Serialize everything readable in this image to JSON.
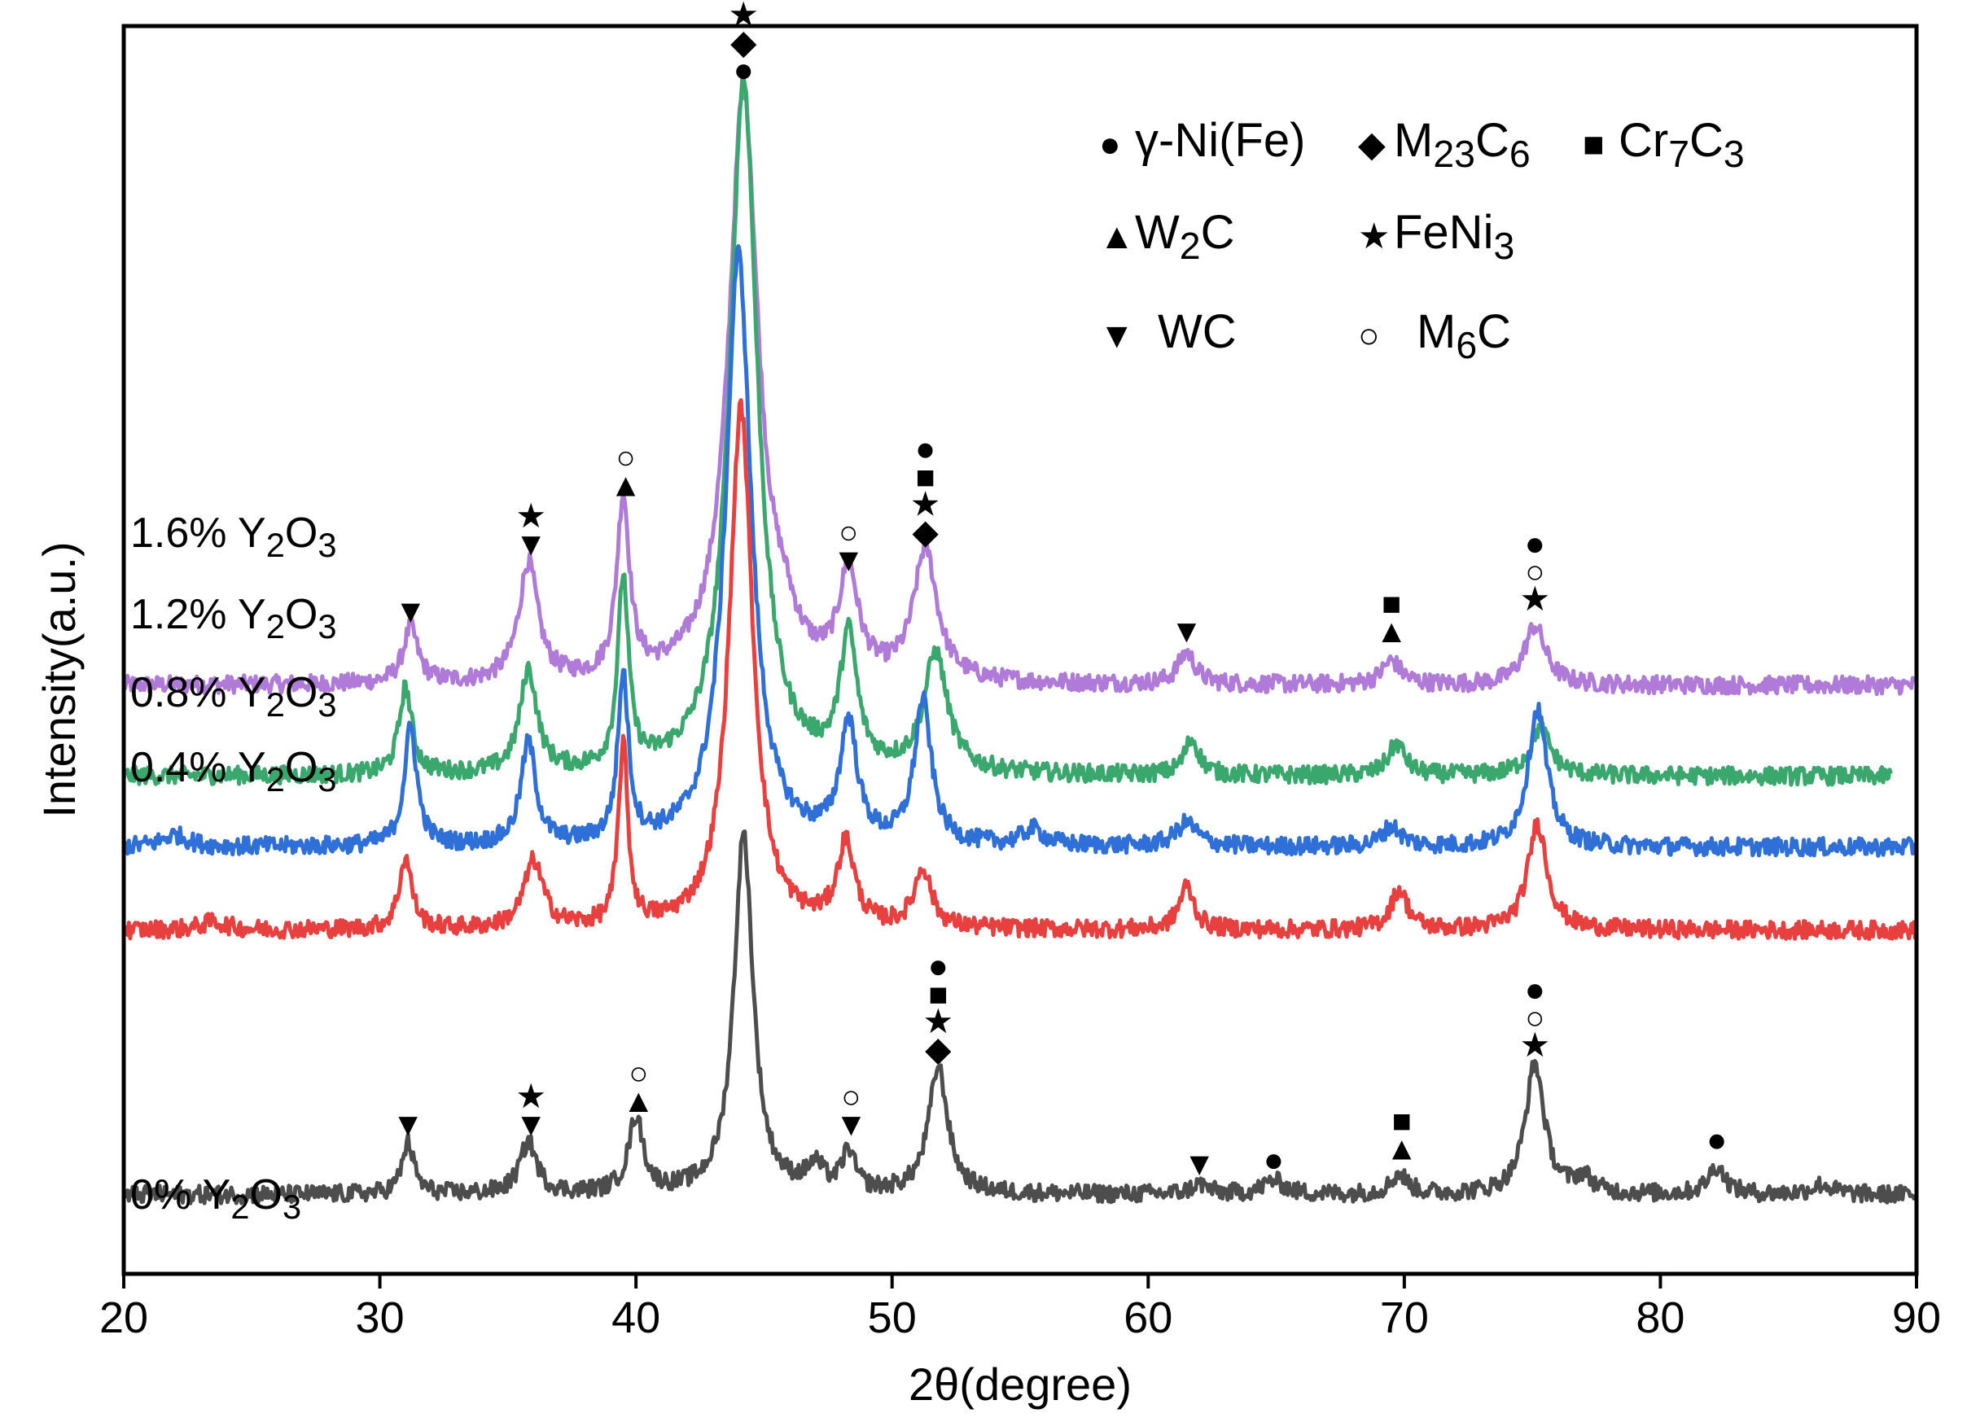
{
  "chart_data": {
    "type": "line",
    "xlabel": "2θ(degree)",
    "ylabel": "Intensity(a.u.)",
    "xlim": [
      20,
      90
    ],
    "xticks": [
      "20",
      "30",
      "40",
      "50",
      "60",
      "70",
      "80",
      "90"
    ],
    "legend": [
      {
        "symbol": "●",
        "label": "γ-Ni(Fe)"
      },
      {
        "symbol": "◆",
        "label": "M23C6",
        "base": "M",
        "sub1": "23",
        "mid": "C",
        "sub2": "6"
      },
      {
        "symbol": "■",
        "label": "Cr7C3",
        "base": "Cr",
        "sub1": "7",
        "mid": "C",
        "sub2": "3"
      },
      {
        "symbol": "▲",
        "label": "W2C",
        "base": "W",
        "sub1": "2",
        "mid": "C",
        "sub2": ""
      },
      {
        "symbol": "★",
        "label": "FeNi3",
        "base": "FeNi",
        "sub1": "3",
        "mid": "",
        "sub2": ""
      },
      {
        "symbol": "▼",
        "label": "WC"
      },
      {
        "symbol": "○",
        "label": "M6C",
        "base": "M",
        "sub1": "6",
        "mid": "C",
        "sub2": ""
      }
    ],
    "series": [
      {
        "name": "1.6% Y2O3",
        "label_prefix": "1.6% Y",
        "color": "#b07ad9",
        "x_end": 90,
        "baseline": 13.3,
        "peaks": [
          [
            31.2,
            1.4,
            0.35
          ],
          [
            35.8,
            3.0,
            0.45
          ],
          [
            39.5,
            4.5,
            0.3
          ],
          [
            44.2,
            15.0,
            0.7
          ],
          [
            45.8,
            0.7,
            0.5
          ],
          [
            48.3,
            2.6,
            0.45
          ],
          [
            51.3,
            3.3,
            0.55
          ],
          [
            61.5,
            0.8,
            0.4
          ],
          [
            69.5,
            0.6,
            0.45
          ],
          [
            75.1,
            1.5,
            0.5
          ]
        ]
      },
      {
        "name": "1.2% Y2O3",
        "label_prefix": "1.2% Y",
        "color": "#3aa76d",
        "x_end": 89,
        "baseline": 11.0,
        "peaks": [
          [
            31.0,
            2.2,
            0.3
          ],
          [
            35.8,
            2.6,
            0.4
          ],
          [
            39.5,
            4.8,
            0.25
          ],
          [
            44.2,
            17.6,
            0.65
          ],
          [
            48.3,
            3.3,
            0.4
          ],
          [
            51.7,
            3.0,
            0.55
          ],
          [
            61.7,
            0.9,
            0.35
          ],
          [
            69.7,
            0.8,
            0.4
          ],
          [
            75.3,
            1.2,
            0.5
          ]
        ]
      },
      {
        "name": "0.8% Y2O3",
        "label_prefix": "0.8% Y",
        "color": "#2e6fd8",
        "x_end": 90,
        "baseline": 9.2,
        "peaks": [
          [
            22.0,
            0.3,
            0.6
          ],
          [
            31.2,
            3.0,
            0.3
          ],
          [
            35.8,
            2.6,
            0.35
          ],
          [
            39.5,
            4.2,
            0.25
          ],
          [
            44.0,
            15.0,
            0.6
          ],
          [
            48.3,
            3.0,
            0.4
          ],
          [
            51.2,
            3.6,
            0.4
          ],
          [
            55.5,
            0.4,
            0.5
          ],
          [
            61.5,
            0.6,
            0.5
          ],
          [
            69.5,
            0.5,
            0.45
          ],
          [
            75.2,
            3.5,
            0.45
          ]
        ]
      },
      {
        "name": "0.4% Y2O3",
        "label_prefix": "0.4% Y",
        "color": "#e8403f",
        "x_end": 90,
        "baseline": 7.1,
        "peaks": [
          [
            23.5,
            0.2,
            0.6
          ],
          [
            31.0,
            1.8,
            0.3
          ],
          [
            36.0,
            1.7,
            0.45
          ],
          [
            39.5,
            4.6,
            0.22
          ],
          [
            44.1,
            13.2,
            0.55
          ],
          [
            48.2,
            2.1,
            0.4
          ],
          [
            51.2,
            1.5,
            0.4
          ],
          [
            61.5,
            1.1,
            0.35
          ],
          [
            69.8,
            1.0,
            0.4
          ],
          [
            75.2,
            2.7,
            0.45
          ]
        ]
      },
      {
        "name": "0% Y2O3",
        "label_prefix": "0% Y",
        "color": "#4d4d4d",
        "x_end": 90,
        "baseline": 0.4,
        "peaks": [
          [
            31.1,
            1.3,
            0.28
          ],
          [
            35.8,
            1.3,
            0.4
          ],
          [
            40.0,
            1.9,
            0.35
          ],
          [
            44.2,
            9.1,
            0.45
          ],
          [
            47.0,
            0.6,
            0.4
          ],
          [
            48.3,
            1.0,
            0.3
          ],
          [
            51.8,
            3.2,
            0.45
          ],
          [
            62.0,
            0.25,
            0.4
          ],
          [
            64.9,
            0.35,
            0.5
          ],
          [
            69.8,
            0.5,
            0.4
          ],
          [
            75.1,
            3.3,
            0.45
          ],
          [
            77.0,
            0.4,
            0.4
          ],
          [
            82.2,
            0.7,
            0.4
          ],
          [
            86.3,
            0.25,
            0.5
          ]
        ]
      }
    ],
    "annotations": [
      {
        "x": 31.2,
        "y": 14.9,
        "symbols": [
          "▼"
        ]
      },
      {
        "x": 35.9,
        "y": 16.6,
        "symbols": [
          "▼",
          "★"
        ]
      },
      {
        "x": 39.6,
        "y": 18.1,
        "symbols": [
          "▲",
          "○"
        ]
      },
      {
        "x": 44.2,
        "y": 28.6,
        "symbols": [
          "●",
          "◆",
          "★"
        ]
      },
      {
        "x": 48.3,
        "y": 16.2,
        "symbols": [
          "▼",
          "○"
        ]
      },
      {
        "x": 51.3,
        "y": 16.9,
        "symbols": [
          "◆",
          "★",
          "■",
          "●"
        ]
      },
      {
        "x": 61.5,
        "y": 14.4,
        "symbols": [
          "▼"
        ]
      },
      {
        "x": 69.5,
        "y": 14.4,
        "symbols": [
          "▲",
          "■"
        ]
      },
      {
        "x": 75.1,
        "y": 15.2,
        "symbols": [
          "★",
          "○",
          "●"
        ]
      },
      {
        "x": 31.1,
        "y": 1.9,
        "symbols": [
          "▼"
        ]
      },
      {
        "x": 35.9,
        "y": 1.9,
        "symbols": [
          "▼",
          "★"
        ]
      },
      {
        "x": 40.1,
        "y": 2.5,
        "symbols": [
          "▲",
          "○"
        ]
      },
      {
        "x": 48.4,
        "y": 1.9,
        "symbols": [
          "▼",
          "○"
        ]
      },
      {
        "x": 51.8,
        "y": 3.8,
        "symbols": [
          "◆",
          "★",
          "■",
          "●"
        ]
      },
      {
        "x": 62.0,
        "y": 0.9,
        "symbols": [
          "▼"
        ]
      },
      {
        "x": 64.9,
        "y": 1.0,
        "symbols": [
          "●"
        ]
      },
      {
        "x": 69.9,
        "y": 1.3,
        "symbols": [
          "▲",
          "■"
        ]
      },
      {
        "x": 75.1,
        "y": 3.9,
        "symbols": [
          "★",
          "○",
          "●"
        ]
      },
      {
        "x": 82.2,
        "y": 1.5,
        "symbols": [
          "●"
        ]
      }
    ]
  }
}
